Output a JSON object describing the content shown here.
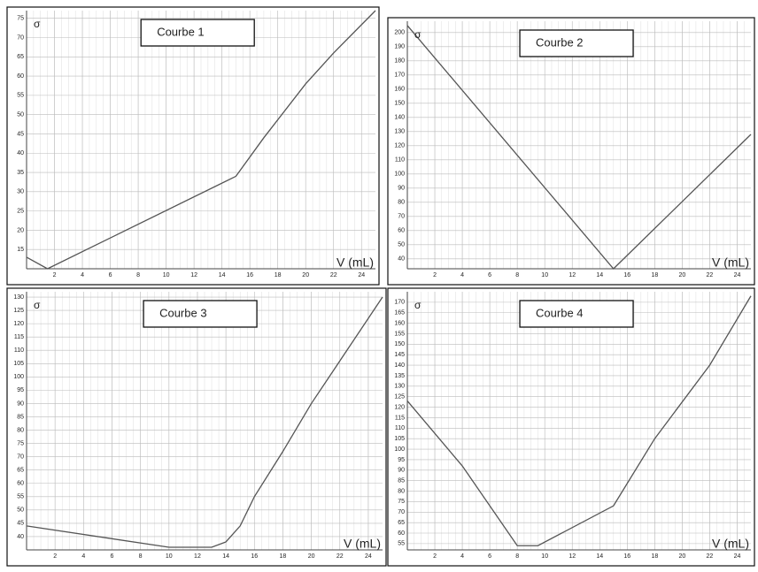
{
  "chart_data": [
    {
      "type": "line",
      "annotation": "Courbe 1",
      "y_label": "σ",
      "x_label": "V (mL)",
      "x": [
        0,
        1.5,
        15,
        17,
        20,
        22,
        25
      ],
      "values": [
        13,
        10,
        34,
        44,
        58,
        66,
        77
      ],
      "color": "#555555",
      "xlim": [
        0,
        25
      ],
      "ylim": [
        10,
        77
      ],
      "xticks": [
        2,
        4,
        6,
        8,
        10,
        12,
        14,
        16,
        18,
        20,
        22,
        24
      ],
      "yticks": [
        15,
        20,
        25,
        30,
        35,
        40,
        45,
        50,
        55,
        60,
        65,
        70,
        75
      ],
      "grid": true
    },
    {
      "type": "line",
      "annotation": "Courbe 2",
      "y_label": "σ",
      "x_label": "V (mL)",
      "x": [
        0,
        15,
        25
      ],
      "values": [
        205,
        33,
        128
      ],
      "color": "#555555",
      "xlim": [
        0,
        25
      ],
      "ylim": [
        33,
        208
      ],
      "xticks": [
        2,
        4,
        6,
        8,
        10,
        12,
        14,
        16,
        18,
        20,
        22,
        24
      ],
      "yticks": [
        40,
        50,
        60,
        70,
        80,
        90,
        100,
        110,
        120,
        130,
        140,
        150,
        160,
        170,
        180,
        190,
        200
      ],
      "grid": true
    },
    {
      "type": "line",
      "annotation": "Courbe 3",
      "y_label": "σ",
      "x_label": "V (mL)",
      "x": [
        0,
        10,
        13,
        14,
        15,
        16,
        18,
        20,
        22,
        25
      ],
      "values": [
        44,
        36,
        36,
        38,
        44,
        55,
        72,
        90,
        106,
        130
      ],
      "color": "#555555",
      "xlim": [
        0,
        25
      ],
      "ylim": [
        35,
        132
      ],
      "xticks": [
        2,
        4,
        6,
        8,
        10,
        12,
        14,
        16,
        18,
        20,
        22,
        24
      ],
      "yticks": [
        40,
        45,
        50,
        55,
        60,
        65,
        70,
        75,
        80,
        85,
        90,
        95,
        100,
        105,
        110,
        115,
        120,
        125,
        130
      ],
      "grid": true
    },
    {
      "type": "line",
      "annotation": "Courbe 4",
      "y_label": "σ",
      "x_label": "V (mL)",
      "x": [
        0,
        4,
        8,
        9.5,
        15,
        18,
        22,
        25
      ],
      "values": [
        123,
        92,
        54,
        54,
        73,
        105,
        140,
        173
      ],
      "color": "#555555",
      "xlim": [
        0,
        25
      ],
      "ylim": [
        52,
        175
      ],
      "xticks": [
        2,
        4,
        6,
        8,
        10,
        12,
        14,
        16,
        18,
        20,
        22,
        24
      ],
      "yticks": [
        55,
        60,
        65,
        70,
        75,
        80,
        85,
        90,
        95,
        100,
        105,
        110,
        115,
        120,
        125,
        130,
        135,
        140,
        145,
        150,
        155,
        160,
        165,
        170
      ],
      "grid": true
    }
  ]
}
